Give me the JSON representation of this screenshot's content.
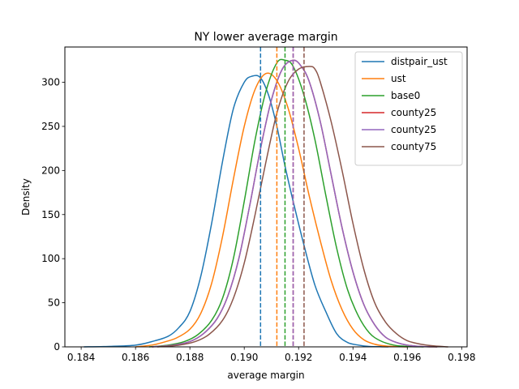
{
  "chart_data": {
    "type": "line",
    "title": "NY lower average margin",
    "xlabel": "average margin",
    "ylabel": "Density",
    "xlim": [
      0.1834,
      0.1982
    ],
    "ylim": [
      0,
      340
    ],
    "xticks": [
      0.184,
      0.186,
      0.188,
      0.19,
      0.192,
      0.194,
      0.196,
      0.198
    ],
    "xtick_labels": [
      "0.184",
      "0.186",
      "0.188",
      "0.190",
      "0.192",
      "0.194",
      "0.196",
      "0.198"
    ],
    "yticks": [
      0,
      50,
      100,
      150,
      200,
      250,
      300
    ],
    "ytick_labels": [
      "0",
      "50",
      "100",
      "150",
      "200",
      "250",
      "300"
    ],
    "grid": false,
    "legend_position": "top-right",
    "series": [
      {
        "name": "distpair_ust",
        "color": "#1f77b4",
        "mean": 0.1906,
        "x": [
          0.1841,
          0.185,
          0.186,
          0.1866,
          0.1872,
          0.1876,
          0.188,
          0.1884,
          0.1888,
          0.1892,
          0.1896,
          0.19,
          0.1903,
          0.1906,
          0.1909,
          0.1912,
          0.1915,
          0.1918,
          0.1922,
          0.1926,
          0.193,
          0.1934,
          0.1938,
          0.1942,
          0.1946,
          0.195,
          0.1953
        ],
        "y": [
          0,
          0.5,
          2,
          6,
          12,
          22,
          40,
          80,
          140,
          210,
          270,
          300,
          307,
          305,
          285,
          250,
          205,
          165,
          115,
          70,
          40,
          15,
          5,
          2,
          0.5,
          0.2,
          0
        ]
      },
      {
        "name": "ust",
        "color": "#ff7f0e",
        "mean": 0.1912,
        "x": [
          0.186,
          0.1866,
          0.187,
          0.1875,
          0.188,
          0.1884,
          0.1888,
          0.1892,
          0.1896,
          0.19,
          0.1904,
          0.1908,
          0.1912,
          0.1916,
          0.192,
          0.1924,
          0.1928,
          0.1932,
          0.1936,
          0.194,
          0.1944,
          0.1948,
          0.1952,
          0.1956,
          0.196
        ],
        "y": [
          0,
          2,
          5,
          10,
          20,
          38,
          72,
          125,
          190,
          250,
          292,
          310,
          302,
          272,
          225,
          170,
          120,
          75,
          42,
          20,
          8,
          3,
          1,
          0.3,
          0
        ]
      },
      {
        "name": "base0",
        "color": "#2ca02c",
        "mean": 0.1915,
        "x": [
          0.1865,
          0.1872,
          0.1878,
          0.1883,
          0.1888,
          0.1892,
          0.1896,
          0.19,
          0.1904,
          0.1908,
          0.1912,
          0.1915,
          0.1918,
          0.1922,
          0.1926,
          0.193,
          0.1934,
          0.1938,
          0.1942,
          0.1946,
          0.195,
          0.1955,
          0.196,
          0.1966
        ],
        "y": [
          0,
          2,
          6,
          14,
          30,
          55,
          100,
          165,
          235,
          290,
          322,
          325,
          318,
          285,
          235,
          172,
          112,
          65,
          35,
          16,
          7,
          2,
          0.5,
          0
        ]
      },
      {
        "name": "county25",
        "color": "#d62728",
        "mean": 0.1918,
        "x": [
          0.1866,
          0.1874,
          0.188,
          0.1885,
          0.189,
          0.1894,
          0.1898,
          0.1902,
          0.1906,
          0.191,
          0.1914,
          0.1918,
          0.1921,
          0.1924,
          0.1928,
          0.1932,
          0.1936,
          0.194,
          0.1944,
          0.1948,
          0.1952,
          0.1956,
          0.196,
          0.1965,
          0.1971
        ],
        "y": [
          0,
          2,
          6,
          15,
          32,
          58,
          100,
          160,
          225,
          280,
          315,
          325,
          318,
          300,
          255,
          195,
          135,
          85,
          48,
          25,
          11,
          5,
          2,
          0.5,
          0
        ]
      },
      {
        "name": "county25",
        "color": "#9467bd",
        "mean": 0.1918,
        "x": [
          0.1866,
          0.1874,
          0.188,
          0.1885,
          0.189,
          0.1894,
          0.1898,
          0.1902,
          0.1906,
          0.191,
          0.1914,
          0.1918,
          0.1921,
          0.1924,
          0.1928,
          0.1932,
          0.1936,
          0.194,
          0.1944,
          0.1948,
          0.1952,
          0.1956,
          0.196,
          0.1965,
          0.1971
        ],
        "y": [
          0,
          2,
          6,
          15,
          32,
          58,
          100,
          160,
          225,
          280,
          315,
          325,
          318,
          300,
          255,
          195,
          135,
          85,
          48,
          25,
          11,
          5,
          2,
          0.5,
          0
        ]
      },
      {
        "name": "county75",
        "color": "#8c564b",
        "mean": 0.1922,
        "x": [
          0.1868,
          0.1876,
          0.1882,
          0.1887,
          0.1892,
          0.1896,
          0.19,
          0.1904,
          0.1908,
          0.1912,
          0.1916,
          0.192,
          0.1924,
          0.1926,
          0.1928,
          0.1932,
          0.1936,
          0.194,
          0.1944,
          0.1948,
          0.1952,
          0.1956,
          0.196,
          0.1965,
          0.197,
          0.1975
        ],
        "y": [
          0,
          2,
          6,
          14,
          30,
          55,
          95,
          150,
          210,
          265,
          300,
          315,
          318,
          315,
          300,
          255,
          200,
          140,
          88,
          50,
          28,
          15,
          7,
          3,
          1,
          0
        ]
      }
    ]
  }
}
